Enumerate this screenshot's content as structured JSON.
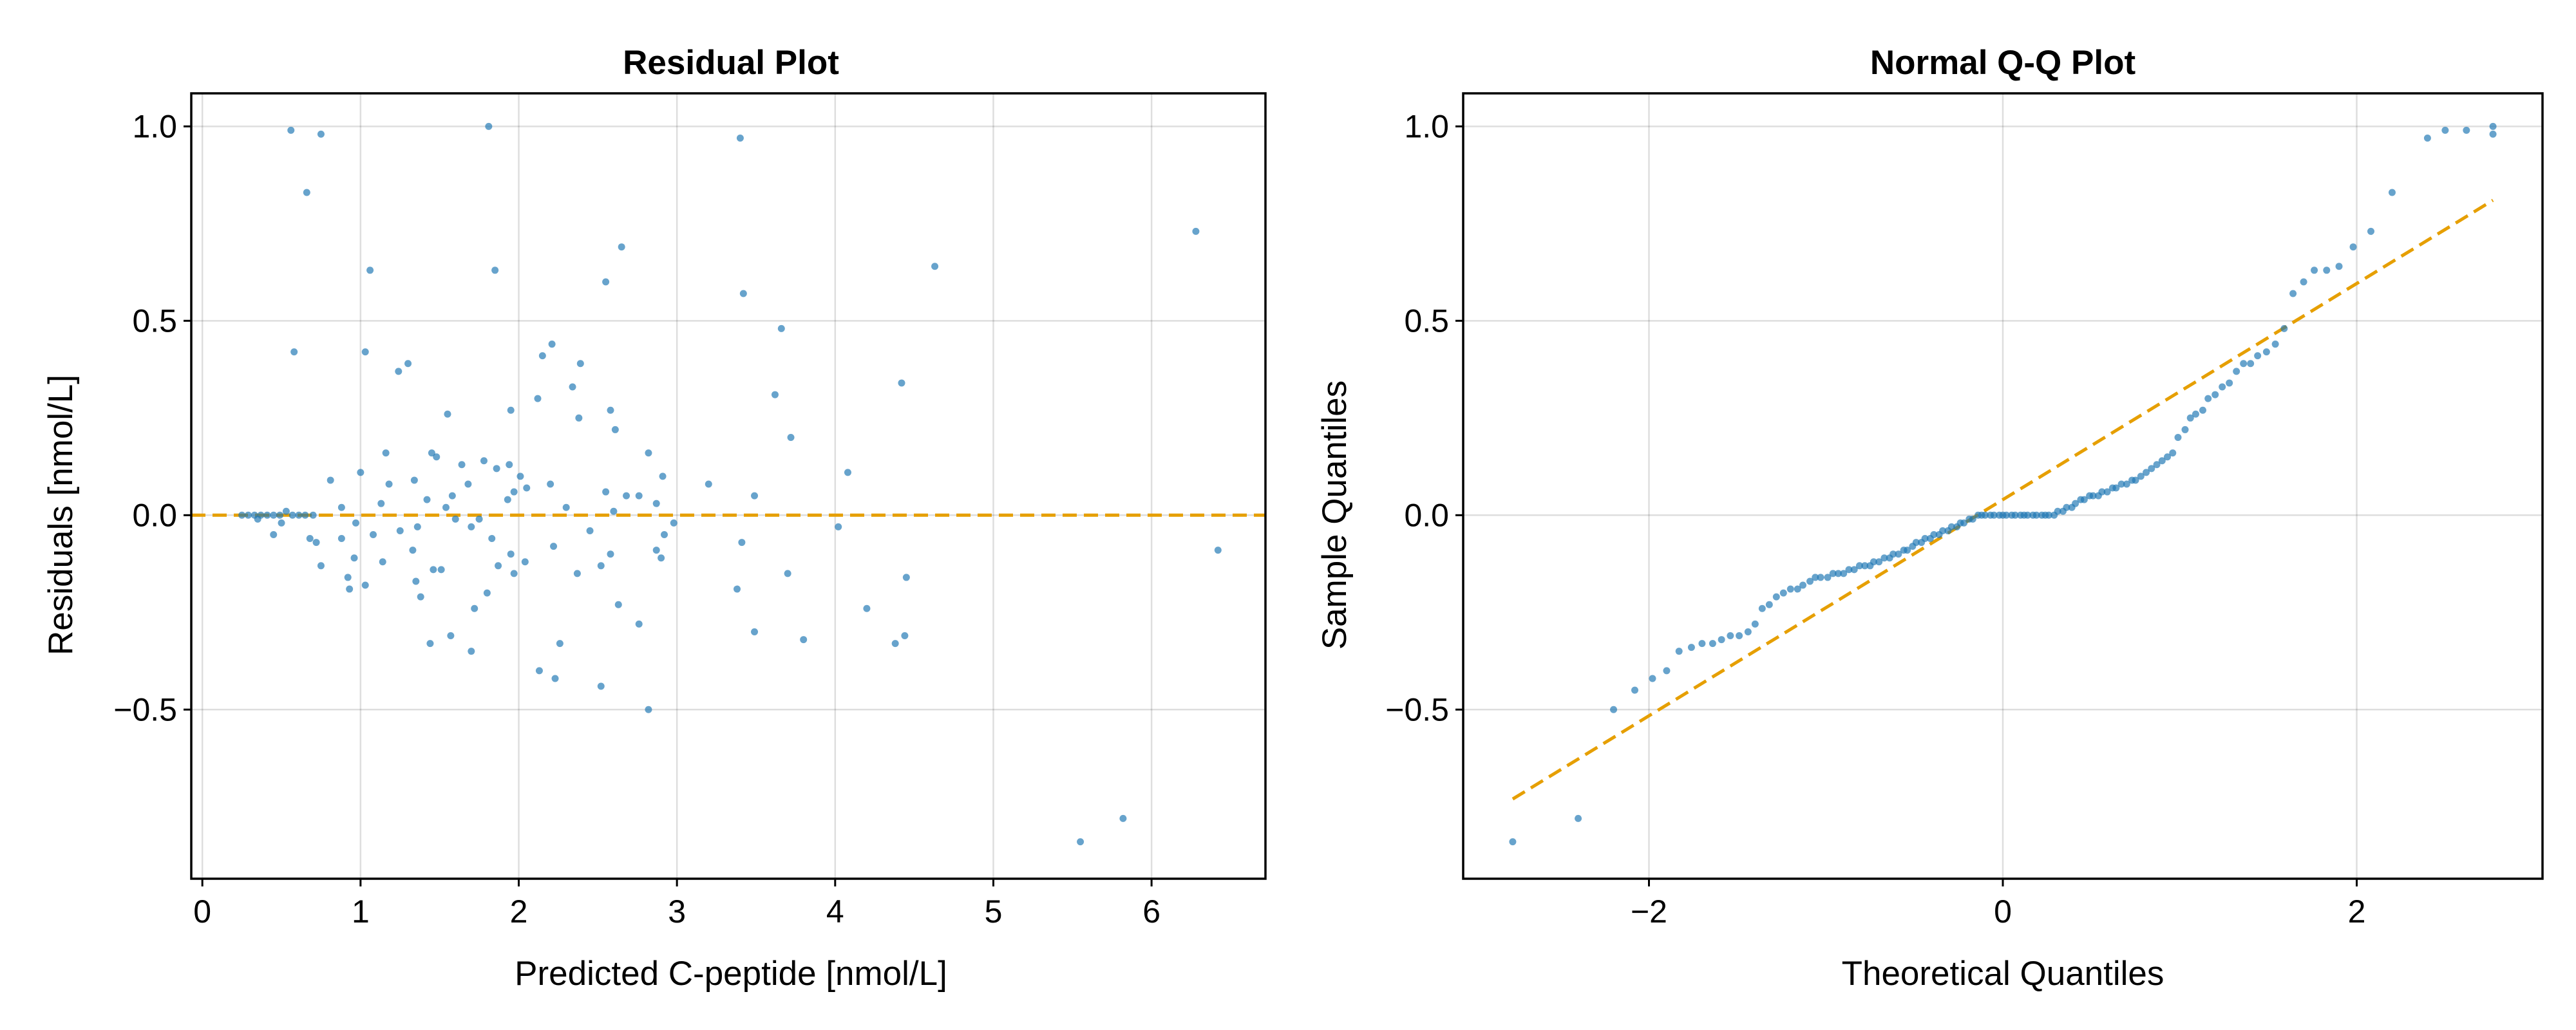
{
  "chart_data": [
    {
      "type": "scatter",
      "title": "Residual Plot",
      "xlabel": "Predicted C-peptide [nmol/L]",
      "ylabel": "Residuals [nmol/L]",
      "xlim": [
        -0.07,
        6.72
      ],
      "ylim": [
        -0.935,
        1.085
      ],
      "xticks": [
        0,
        1,
        2,
        3,
        4,
        5,
        6
      ],
      "xtick_labels": [
        "0",
        "1",
        "2",
        "3",
        "4",
        "5",
        "6"
      ],
      "yticks": [
        -0.5,
        0.0,
        0.5,
        1.0
      ],
      "ytick_labels": [
        "−0.5",
        "0.0",
        "0.5",
        "1.0"
      ],
      "grid": true,
      "colors": {
        "points": "#1f77b4",
        "reference_line": "#e69f00"
      },
      "reference_line": {
        "type": "horizontal",
        "y": 0,
        "style": "dashed"
      },
      "points": [
        [
          0.56,
          0.99
        ],
        [
          0.75,
          0.98
        ],
        [
          1.81,
          1.0
        ],
        [
          3.4,
          0.97
        ],
        [
          0.66,
          0.83
        ],
        [
          6.28,
          0.73
        ],
        [
          2.65,
          0.69
        ],
        [
          4.63,
          0.64
        ],
        [
          1.06,
          0.63
        ],
        [
          1.85,
          0.63
        ],
        [
          2.55,
          0.6
        ],
        [
          3.42,
          0.57
        ],
        [
          0.58,
          0.42
        ],
        [
          1.03,
          0.42
        ],
        [
          2.21,
          0.44
        ],
        [
          1.3,
          0.39
        ],
        [
          1.24,
          0.37
        ],
        [
          2.15,
          0.41
        ],
        [
          2.39,
          0.39
        ],
        [
          3.66,
          0.48
        ],
        [
          4.42,
          0.34
        ],
        [
          2.34,
          0.33
        ],
        [
          2.12,
          0.3
        ],
        [
          3.62,
          0.31
        ],
        [
          1.95,
          0.27
        ],
        [
          2.58,
          0.27
        ],
        [
          1.55,
          0.26
        ],
        [
          2.38,
          0.25
        ],
        [
          2.61,
          0.22
        ],
        [
          3.72,
          0.2
        ],
        [
          1.16,
          0.16
        ],
        [
          1.45,
          0.16
        ],
        [
          2.82,
          0.16
        ],
        [
          1.48,
          0.15
        ],
        [
          1.78,
          0.14
        ],
        [
          1.64,
          0.13
        ],
        [
          1.94,
          0.13
        ],
        [
          1.86,
          0.12
        ],
        [
          4.08,
          0.11
        ],
        [
          1.0,
          0.11
        ],
        [
          2.01,
          0.1
        ],
        [
          2.91,
          0.1
        ],
        [
          0.81,
          0.09
        ],
        [
          1.34,
          0.09
        ],
        [
          1.68,
          0.08
        ],
        [
          1.18,
          0.08
        ],
        [
          2.2,
          0.08
        ],
        [
          3.2,
          0.08
        ],
        [
          2.05,
          0.07
        ],
        [
          2.55,
          0.06
        ],
        [
          1.97,
          0.06
        ],
        [
          2.68,
          0.05
        ],
        [
          3.49,
          0.05
        ],
        [
          1.58,
          0.05
        ],
        [
          2.76,
          0.05
        ],
        [
          1.42,
          0.04
        ],
        [
          1.93,
          0.04
        ],
        [
          1.13,
          0.03
        ],
        [
          2.87,
          0.03
        ],
        [
          0.88,
          0.02
        ],
        [
          1.54,
          0.02
        ],
        [
          2.3,
          0.02
        ],
        [
          0.53,
          0.01
        ],
        [
          2.6,
          0.01
        ],
        [
          0.25,
          0.0
        ],
        [
          0.29,
          0.0
        ],
        [
          0.33,
          0.0
        ],
        [
          0.37,
          0.0
        ],
        [
          0.41,
          0.0
        ],
        [
          0.45,
          0.0
        ],
        [
          0.49,
          0.0
        ],
        [
          0.57,
          0.0
        ],
        [
          0.61,
          0.0
        ],
        [
          0.65,
          0.0
        ],
        [
          0.7,
          0.0
        ],
        [
          0.35,
          -0.01
        ],
        [
          0.5,
          -0.02
        ],
        [
          1.6,
          -0.01
        ],
        [
          1.75,
          -0.01
        ],
        [
          2.98,
          -0.02
        ],
        [
          0.97,
          -0.02
        ],
        [
          1.36,
          -0.03
        ],
        [
          1.7,
          -0.03
        ],
        [
          1.25,
          -0.04
        ],
        [
          4.02,
          -0.03
        ],
        [
          2.45,
          -0.04
        ],
        [
          0.45,
          -0.05
        ],
        [
          1.08,
          -0.05
        ],
        [
          2.92,
          -0.05
        ],
        [
          0.88,
          -0.06
        ],
        [
          0.68,
          -0.06
        ],
        [
          1.83,
          -0.06
        ],
        [
          3.41,
          -0.07
        ],
        [
          0.72,
          -0.07
        ],
        [
          2.22,
          -0.08
        ],
        [
          1.33,
          -0.09
        ],
        [
          2.87,
          -0.09
        ],
        [
          6.42,
          -0.09
        ],
        [
          1.95,
          -0.1
        ],
        [
          2.58,
          -0.1
        ],
        [
          0.96,
          -0.11
        ],
        [
          2.9,
          -0.11
        ],
        [
          1.14,
          -0.12
        ],
        [
          2.04,
          -0.12
        ],
        [
          1.87,
          -0.13
        ],
        [
          0.75,
          -0.13
        ],
        [
          2.52,
          -0.13
        ],
        [
          1.46,
          -0.14
        ],
        [
          1.51,
          -0.14
        ],
        [
          3.7,
          -0.15
        ],
        [
          1.97,
          -0.15
        ],
        [
          2.37,
          -0.15
        ],
        [
          0.92,
          -0.16
        ],
        [
          1.35,
          -0.17
        ],
        [
          1.03,
          -0.18
        ],
        [
          0.93,
          -0.19
        ],
        [
          4.45,
          -0.16
        ],
        [
          3.38,
          -0.19
        ],
        [
          1.8,
          -0.2
        ],
        [
          1.38,
          -0.21
        ],
        [
          2.63,
          -0.23
        ],
        [
          4.2,
          -0.24
        ],
        [
          1.72,
          -0.24
        ],
        [
          2.76,
          -0.28
        ],
        [
          3.49,
          -0.3
        ],
        [
          4.44,
          -0.31
        ],
        [
          1.57,
          -0.31
        ],
        [
          3.8,
          -0.32
        ],
        [
          1.44,
          -0.33
        ],
        [
          2.26,
          -0.33
        ],
        [
          4.38,
          -0.33
        ],
        [
          1.7,
          -0.35
        ],
        [
          2.13,
          -0.4
        ],
        [
          2.23,
          -0.42
        ],
        [
          2.52,
          -0.44
        ],
        [
          2.82,
          -0.5
        ],
        [
          5.55,
          -0.84
        ],
        [
          5.82,
          -0.78
        ]
      ]
    },
    {
      "type": "scatter",
      "title": "Normal Q-Q Plot",
      "xlabel": "Theoretical Quantiles",
      "ylabel": "Sample Quantiles",
      "xlim": [
        -3.05,
        3.05
      ],
      "ylim": [
        -0.935,
        1.085
      ],
      "xticks": [
        -2,
        0,
        2
      ],
      "xtick_labels": [
        "−2",
        "0",
        "2"
      ],
      "yticks": [
        -0.5,
        0.0,
        0.5,
        1.0
      ],
      "ytick_labels": [
        "−0.5",
        "0.0",
        "0.5",
        "1.0"
      ],
      "grid": true,
      "colors": {
        "points": "#1f77b4",
        "reference_line": "#e69f00"
      },
      "reference_line": {
        "type": "segment",
        "from": [
          -2.77,
          -0.73
        ],
        "to": [
          2.77,
          0.81
        ],
        "style": "dashed"
      },
      "points": [
        [
          -2.77,
          -0.84
        ],
        [
          -2.4,
          -0.78
        ],
        [
          -2.2,
          -0.5
        ],
        [
          -2.08,
          -0.45
        ],
        [
          -1.98,
          -0.42
        ],
        [
          -1.9,
          -0.4
        ],
        [
          -1.83,
          -0.35
        ],
        [
          -1.76,
          -0.34
        ],
        [
          -1.7,
          -0.33
        ],
        [
          -1.64,
          -0.33
        ],
        [
          -1.59,
          -0.32
        ],
        [
          -1.54,
          -0.31
        ],
        [
          -1.49,
          -0.31
        ],
        [
          -1.44,
          -0.3
        ],
        [
          -1.4,
          -0.28
        ],
        [
          -1.36,
          -0.24
        ],
        [
          -1.32,
          -0.23
        ],
        [
          -1.28,
          -0.21
        ],
        [
          -1.24,
          -0.2
        ],
        [
          -1.2,
          -0.19
        ],
        [
          -1.16,
          -0.19
        ],
        [
          -1.13,
          -0.18
        ],
        [
          -1.09,
          -0.17
        ],
        [
          -1.06,
          -0.16
        ],
        [
          -1.03,
          -0.16
        ],
        [
          -0.99,
          -0.16
        ],
        [
          -0.96,
          -0.15
        ],
        [
          -0.93,
          -0.15
        ],
        [
          -0.9,
          -0.15
        ],
        [
          -0.87,
          -0.14
        ],
        [
          -0.84,
          -0.14
        ],
        [
          -0.81,
          -0.13
        ],
        [
          -0.78,
          -0.13
        ],
        [
          -0.75,
          -0.13
        ],
        [
          -0.73,
          -0.12
        ],
        [
          -0.7,
          -0.12
        ],
        [
          -0.67,
          -0.11
        ],
        [
          -0.64,
          -0.11
        ],
        [
          -0.62,
          -0.1
        ],
        [
          -0.59,
          -0.1
        ],
        [
          -0.56,
          -0.09
        ],
        [
          -0.54,
          -0.09
        ],
        [
          -0.51,
          -0.08
        ],
        [
          -0.49,
          -0.07
        ],
        [
          -0.46,
          -0.07
        ],
        [
          -0.44,
          -0.06
        ],
        [
          -0.41,
          -0.06
        ],
        [
          -0.39,
          -0.05
        ],
        [
          -0.36,
          -0.05
        ],
        [
          -0.34,
          -0.04
        ],
        [
          -0.31,
          -0.04
        ],
        [
          -0.29,
          -0.03
        ],
        [
          -0.26,
          -0.03
        ],
        [
          -0.24,
          -0.02
        ],
        [
          -0.22,
          -0.02
        ],
        [
          -0.19,
          -0.01
        ],
        [
          -0.17,
          -0.01
        ],
        [
          -0.14,
          0.0
        ],
        [
          -0.12,
          0.0
        ],
        [
          -0.1,
          0.0
        ],
        [
          -0.07,
          0.0
        ],
        [
          -0.05,
          0.0
        ],
        [
          -0.02,
          0.0
        ],
        [
          0.0,
          0.0
        ],
        [
          0.02,
          0.0
        ],
        [
          0.05,
          0.0
        ],
        [
          0.07,
          0.0
        ],
        [
          0.1,
          0.0
        ],
        [
          0.12,
          0.0
        ],
        [
          0.14,
          0.0
        ],
        [
          0.17,
          0.0
        ],
        [
          0.19,
          0.0
        ],
        [
          0.22,
          0.0
        ],
        [
          0.24,
          0.0
        ],
        [
          0.26,
          0.0
        ],
        [
          0.29,
          0.0
        ],
        [
          0.31,
          0.01
        ],
        [
          0.34,
          0.01
        ],
        [
          0.36,
          0.02
        ],
        [
          0.39,
          0.02
        ],
        [
          0.41,
          0.03
        ],
        [
          0.44,
          0.04
        ],
        [
          0.46,
          0.04
        ],
        [
          0.49,
          0.05
        ],
        [
          0.51,
          0.05
        ],
        [
          0.54,
          0.05
        ],
        [
          0.56,
          0.06
        ],
        [
          0.59,
          0.06
        ],
        [
          0.62,
          0.07
        ],
        [
          0.64,
          0.07
        ],
        [
          0.67,
          0.08
        ],
        [
          0.7,
          0.08
        ],
        [
          0.73,
          0.09
        ],
        [
          0.75,
          0.09
        ],
        [
          0.78,
          0.1
        ],
        [
          0.81,
          0.11
        ],
        [
          0.84,
          0.12
        ],
        [
          0.87,
          0.13
        ],
        [
          0.9,
          0.14
        ],
        [
          0.93,
          0.15
        ],
        [
          0.96,
          0.16
        ],
        [
          0.99,
          0.2
        ],
        [
          1.03,
          0.22
        ],
        [
          1.06,
          0.25
        ],
        [
          1.09,
          0.26
        ],
        [
          1.13,
          0.27
        ],
        [
          1.16,
          0.3
        ],
        [
          1.2,
          0.31
        ],
        [
          1.24,
          0.33
        ],
        [
          1.28,
          0.34
        ],
        [
          1.32,
          0.37
        ],
        [
          1.36,
          0.39
        ],
        [
          1.4,
          0.39
        ],
        [
          1.44,
          0.41
        ],
        [
          1.49,
          0.42
        ],
        [
          1.54,
          0.44
        ],
        [
          1.59,
          0.48
        ],
        [
          1.64,
          0.57
        ],
        [
          1.7,
          0.6
        ],
        [
          1.76,
          0.63
        ],
        [
          1.83,
          0.63
        ],
        [
          1.9,
          0.64
        ],
        [
          1.98,
          0.69
        ],
        [
          2.08,
          0.73
        ],
        [
          2.2,
          0.83
        ],
        [
          2.4,
          0.97
        ],
        [
          2.77,
          0.98
        ],
        [
          2.5,
          0.99
        ],
        [
          2.62,
          0.99
        ],
        [
          2.77,
          1.0
        ]
      ]
    }
  ]
}
